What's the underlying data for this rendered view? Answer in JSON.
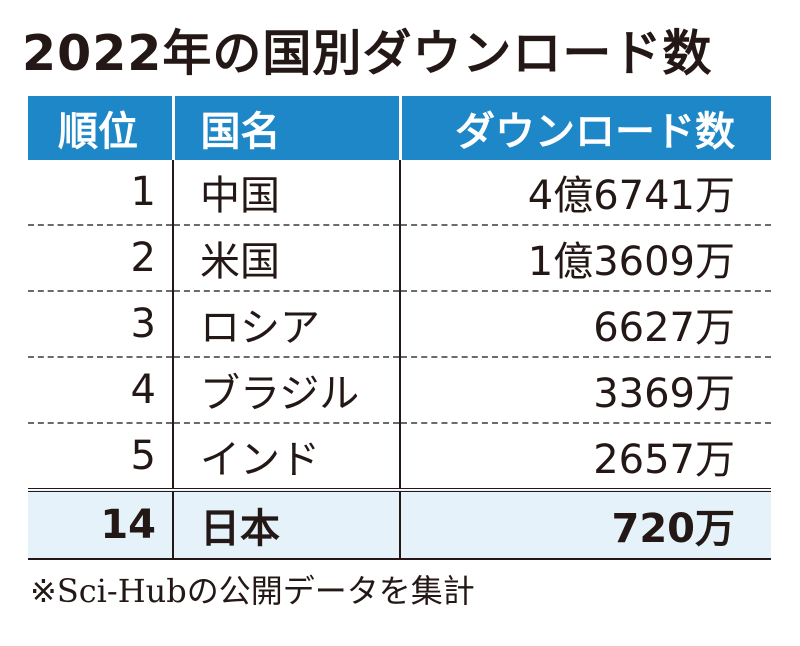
{
  "title": "2022年の国別ダウンロード数",
  "note": "※Sci-Hubの公開データを集計",
  "colors": {
    "header_bg": "#1d87c8",
    "highlight_row_bg": "#e6f2f9",
    "text": "#231815"
  },
  "chart_data": {
    "type": "table",
    "title": "2022年の国別ダウンロード数",
    "columns": [
      "順位",
      "国名",
      "ダウンロード数"
    ],
    "rows": [
      {
        "rank": "1",
        "country": "中国",
        "downloads": "4億6741万"
      },
      {
        "rank": "2",
        "country": "米国",
        "downloads": "1億3609万"
      },
      {
        "rank": "3",
        "country": "ロシア",
        "downloads": "6627万"
      },
      {
        "rank": "4",
        "country": "ブラジル",
        "downloads": "3369万"
      },
      {
        "rank": "5",
        "country": "インド",
        "downloads": "2657万"
      }
    ],
    "highlight": {
      "rank": "14",
      "country": "日本",
      "downloads": "720万"
    },
    "note": "※Sci-Hubの公開データを集計"
  }
}
